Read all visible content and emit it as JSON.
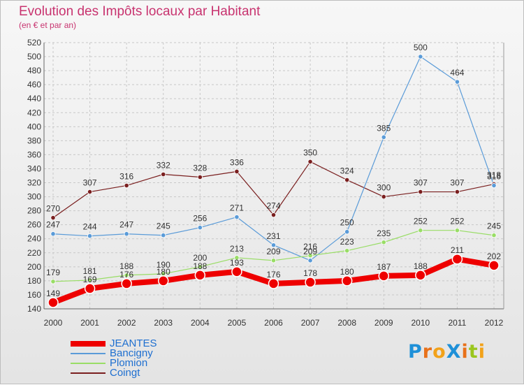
{
  "title": "Evolution des Impôts locaux par Habitant",
  "subtitle": "(en € et par an)",
  "brand": {
    "text": "ProXiti",
    "letter_colors": [
      "#1e90d8",
      "#e8711a",
      "#f2a21a",
      "#1e90d8",
      "#e8711a",
      "#9ac61e",
      "#f2a21a"
    ]
  },
  "chart_data": {
    "type": "line",
    "x": [
      "2000",
      "2001",
      "2002",
      "2003",
      "2004",
      "2005",
      "2006",
      "2007",
      "2008",
      "2009",
      "2010",
      "2011",
      "2012"
    ],
    "ylim": [
      140,
      520
    ],
    "yticks": [
      140,
      160,
      180,
      200,
      220,
      240,
      260,
      280,
      300,
      320,
      340,
      360,
      380,
      400,
      420,
      440,
      460,
      480,
      500,
      520
    ],
    "grid": "horizontal dashed",
    "legend_position": "bottom-left",
    "series": [
      {
        "name": "JEANTES",
        "color": "#ee0000",
        "values": [
          149,
          169,
          176,
          180,
          188,
          193,
          176,
          178,
          180,
          187,
          188,
          211,
          202
        ]
      },
      {
        "name": "Bancigny",
        "color": "#5a9bd8",
        "values": [
          247,
          244,
          247,
          245,
          256,
          271,
          231,
          209,
          250,
          385,
          500,
          464,
          316
        ]
      },
      {
        "name": "Plomion",
        "color": "#99dd66",
        "values": [
          179,
          181,
          188,
          190,
          200,
          213,
          209,
          216,
          223,
          235,
          252,
          252,
          245
        ]
      },
      {
        "name": "Coingt",
        "color": "#7a1f1f",
        "values": [
          270,
          307,
          316,
          332,
          328,
          336,
          274,
          350,
          324,
          300,
          307,
          307,
          318
        ]
      }
    ],
    "data_labels": [
      [
        "149",
        "169",
        "176",
        "180",
        "188",
        "193",
        "176",
        "178",
        "180",
        "187",
        "188",
        "211",
        "202"
      ],
      [
        "247",
        "244",
        "247",
        "245",
        "256",
        "271",
        "231",
        "209",
        "250",
        "385",
        "500",
        "464",
        "316"
      ],
      [
        "179",
        "181",
        "188",
        "190",
        "200",
        "213",
        "209",
        "216",
        "223",
        "235",
        "252",
        "252",
        "245"
      ],
      [
        "270",
        "307",
        "316",
        "332",
        "328",
        "336",
        "274",
        "350",
        "324",
        "300",
        "307",
        "307",
        "318"
      ]
    ]
  }
}
